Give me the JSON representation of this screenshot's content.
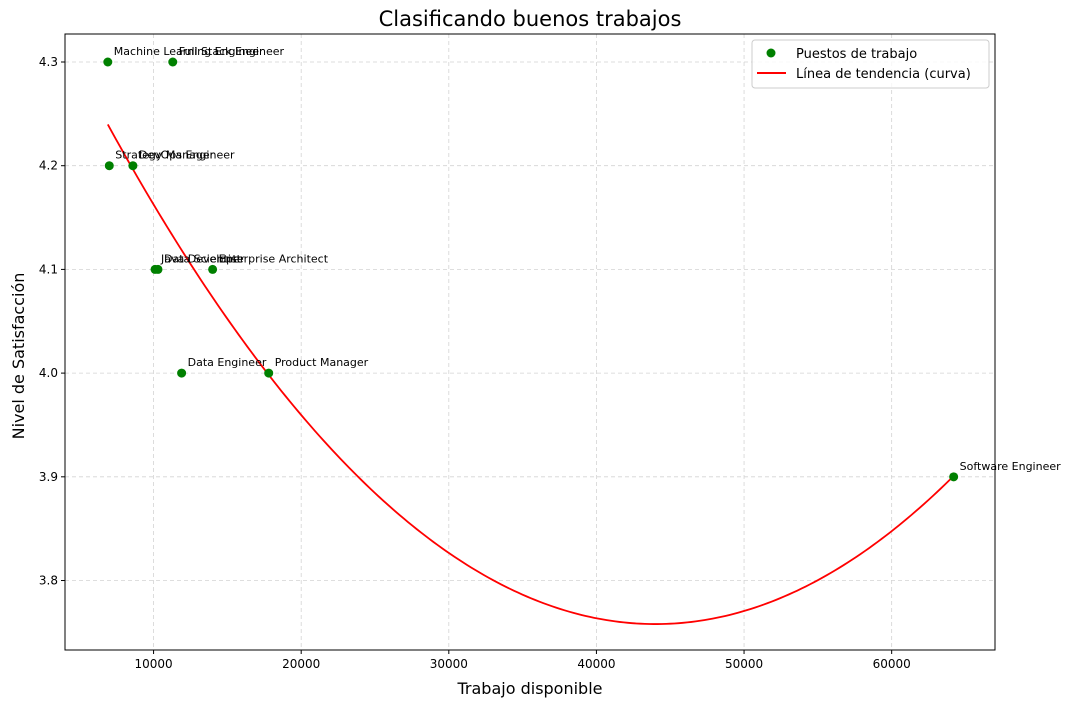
{
  "chart_data": {
    "type": "scatter",
    "title": "Clasificando buenos trabajos",
    "xlabel": "Trabajo disponible",
    "ylabel": "Nivel de Satisfacción",
    "xlim": [
      4000,
      67000
    ],
    "ylim": [
      3.733,
      4.327
    ],
    "xticks": [
      10000,
      20000,
      30000,
      40000,
      50000,
      60000
    ],
    "yticks": [
      3.8,
      3.9,
      4.0,
      4.1,
      4.2,
      4.3
    ],
    "grid": true,
    "legend_position": "top-right",
    "legend": {
      "scatter_label": "Puestos de trabajo",
      "line_label": "Línea de tendencia (curva)"
    },
    "colors": {
      "points": "#008000",
      "trend": "#ff0000",
      "grid": "#d3d3d3"
    },
    "points": [
      {
        "label": "Machine Learning Engineer",
        "x": 6900,
        "y": 4.3
      },
      {
        "label": "Full Stack Engineer",
        "x": 11300,
        "y": 4.3
      },
      {
        "label": "Strategy Manager",
        "x": 7000,
        "y": 4.2
      },
      {
        "label": "DevOps Engineer",
        "x": 8600,
        "y": 4.2
      },
      {
        "label": "Java Developer",
        "x": 10100,
        "y": 4.1
      },
      {
        "label": "Data Scientist",
        "x": 10300,
        "y": 4.1
      },
      {
        "label": "Enterprise Architect",
        "x": 14000,
        "y": 4.1
      },
      {
        "label": "Data Engineer",
        "x": 11900,
        "y": 4.0
      },
      {
        "label": "Product Manager",
        "x": 17800,
        "y": 4.0
      },
      {
        "label": "Software Engineer",
        "x": 64200,
        "y": 3.9
      }
    ],
    "trend": {
      "type": "quadratic",
      "x_range": [
        6900,
        64200
      ],
      "vertex_x": 44000,
      "vertex_y": 3.758,
      "a": 3.5e-10
    }
  }
}
